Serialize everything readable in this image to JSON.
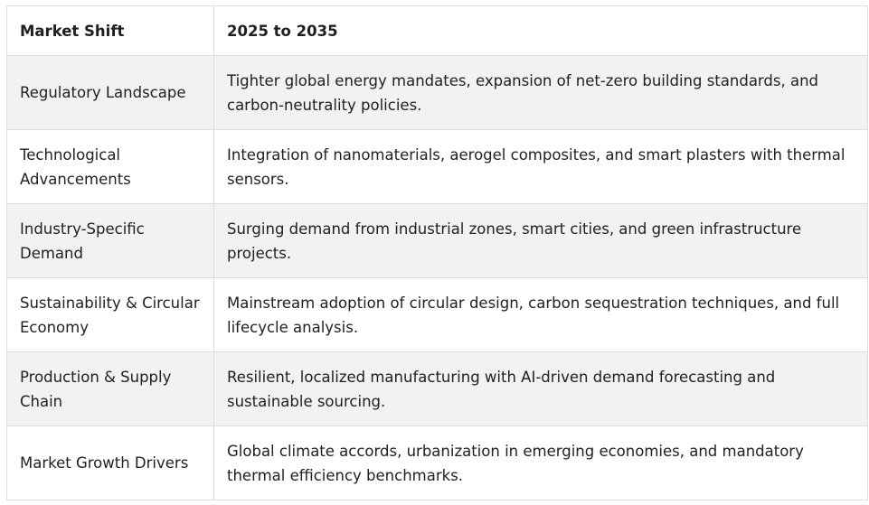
{
  "table": {
    "headers": [
      "Market Shift",
      "2025 to 2035"
    ],
    "rows": [
      {
        "shift": "Regulatory Landscape",
        "outlook": "Tighter global energy mandates, expansion of net-zero building standards, and carbon-neutrality policies."
      },
      {
        "shift": "Technological Advancements",
        "outlook": "Integration of nanomaterials, aerogel composites, and smart plasters with thermal sensors."
      },
      {
        "shift": "Industry-Specific Demand",
        "outlook": "Surging demand from industrial zones, smart cities, and green infrastructure projects."
      },
      {
        "shift": "Sustainability & Circular Economy",
        "outlook": "Mainstream adoption of circular design, carbon sequestration techniques, and full lifecycle analysis."
      },
      {
        "shift": "Production & Supply Chain",
        "outlook": "Resilient, localized manufacturing with AI-driven demand forecasting and sustainable sourcing."
      },
      {
        "shift": "Market Growth Drivers",
        "outlook": "Global climate accords, urbanization in emerging economies, and mandatory thermal efficiency benchmarks."
      }
    ]
  }
}
